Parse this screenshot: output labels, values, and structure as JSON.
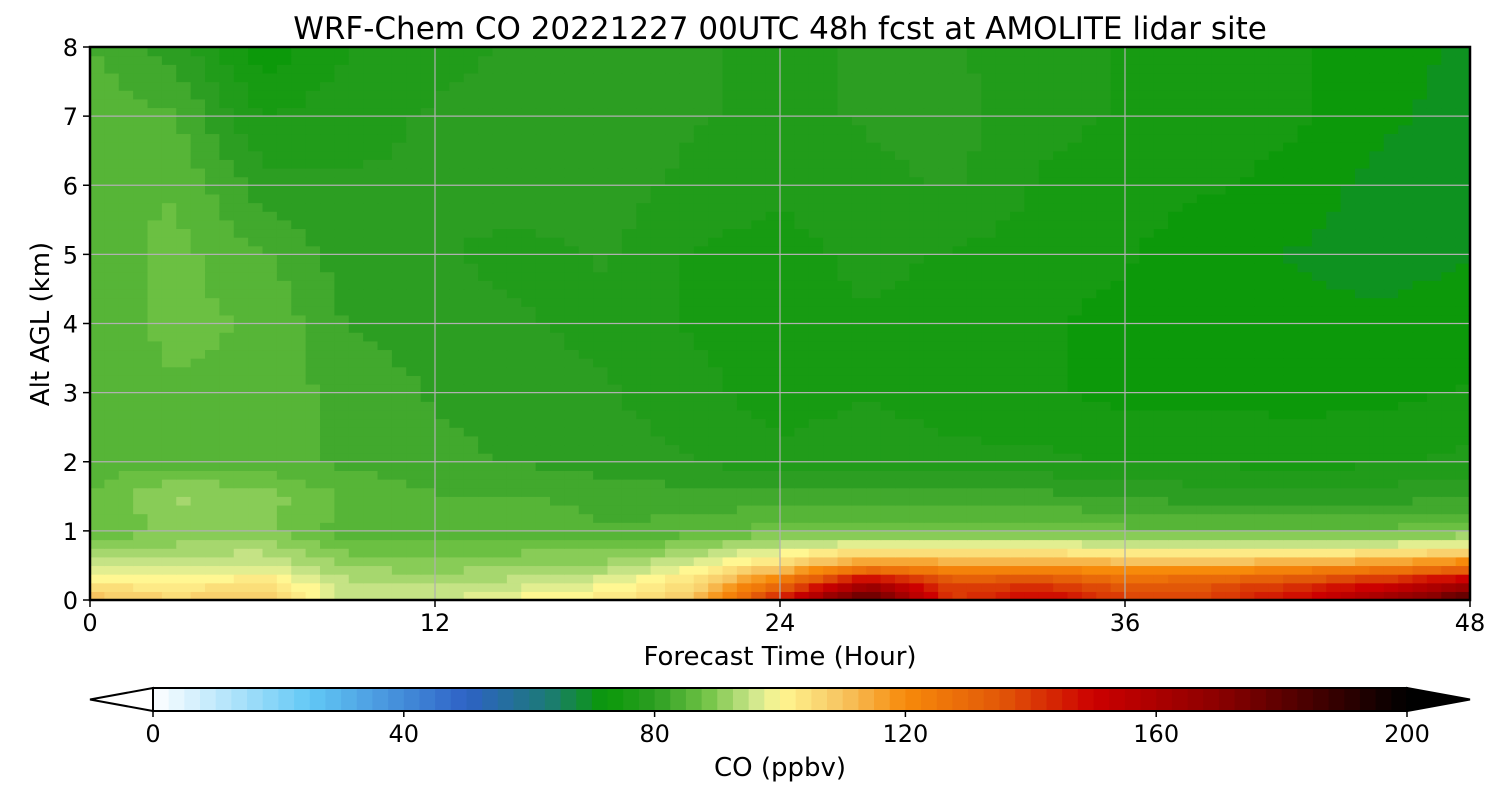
{
  "chart_data": {
    "type": "heatmap",
    "title": "WRF-Chem CO  20221227 00UTC 48h fcst at AMOLITE lidar site",
    "xlabel": "Forecast Time (Hour)",
    "ylabel": "Alt AGL (km)",
    "xlim": [
      0,
      48
    ],
    "ylim": [
      0,
      8
    ],
    "xticks": [
      0,
      12,
      24,
      36,
      48
    ],
    "yticks": [
      0,
      1,
      2,
      3,
      4,
      5,
      6,
      7,
      8
    ],
    "grid": true,
    "x": [
      0,
      3,
      6,
      9,
      12,
      15,
      18,
      21,
      24,
      27,
      30,
      33,
      36,
      39,
      42,
      45,
      48
    ],
    "y": [
      0,
      0.25,
      0.5,
      0.75,
      1,
      1.5,
      2,
      3,
      4,
      5,
      6,
      7,
      8
    ],
    "z": [
      [
        112,
        107,
        110,
        95,
        96,
        100,
        103,
        110,
        148,
        185,
        140,
        152,
        140,
        140,
        150,
        165,
        185
      ],
      [
        103,
        101,
        104,
        94,
        93,
        95,
        98,
        105,
        127,
        160,
        138,
        140,
        132,
        135,
        140,
        147,
        160
      ],
      [
        96,
        96,
        97,
        91,
        90,
        91,
        92,
        98,
        107,
        120,
        118,
        118,
        115,
        115,
        117,
        120,
        125
      ],
      [
        90,
        92,
        93,
        88,
        87,
        88,
        88,
        91,
        96,
        101,
        100,
        100,
        98,
        97,
        98,
        99,
        102
      ],
      [
        87,
        89,
        89,
        85,
        85,
        85,
        84,
        85,
        88,
        88,
        88,
        88,
        87,
        86,
        86,
        87,
        88
      ],
      [
        86,
        92,
        90,
        86,
        84,
        84,
        83,
        82,
        82,
        83,
        83,
        82,
        81,
        80,
        80,
        80,
        81
      ],
      [
        85,
        85,
        85,
        83,
        82,
        81,
        80,
        79,
        77,
        78,
        77,
        77,
        76,
        76,
        75,
        76,
        77
      ],
      [
        84,
        86,
        85,
        83,
        81,
        80,
        79,
        77,
        75,
        76,
        75,
        74,
        73,
        73,
        73,
        73,
        74
      ],
      [
        85,
        87,
        86,
        81,
        80,
        79,
        78,
        76,
        75,
        76,
        75,
        74,
        73,
        72,
        72,
        72,
        73
      ],
      [
        85,
        87,
        84,
        80,
        79,
        78,
        79,
        76,
        75,
        77,
        76,
        75,
        74,
        72,
        71,
        70,
        71
      ],
      [
        86,
        86,
        80,
        79,
        79,
        80,
        80,
        78,
        77,
        78,
        79,
        76,
        75,
        74,
        73,
        70,
        69
      ],
      [
        85,
        84,
        76,
        78,
        79,
        80,
        81,
        79,
        78,
        79,
        80,
        77,
        76,
        75,
        74,
        72,
        70
      ],
      [
        84,
        80,
        72,
        76,
        78,
        79,
        80,
        79,
        78,
        79,
        79,
        77,
        76,
        75,
        74,
        72,
        71
      ]
    ],
    "colorbar": {
      "label": "CO  (ppbv)",
      "min": 0,
      "max": 200,
      "ticks": [
        0,
        40,
        80,
        120,
        160,
        200
      ],
      "extend": "both",
      "location": "bottom",
      "colors": [
        {
          "v": 0,
          "c": "#ffffff"
        },
        {
          "v": 25,
          "c": "#62c8f5"
        },
        {
          "v": 50,
          "c": "#2e62c6"
        },
        {
          "v": 63,
          "c": "#1c7a76"
        },
        {
          "v": 72,
          "c": "#0a9908"
        },
        {
          "v": 80,
          "c": "#2c9e22"
        },
        {
          "v": 88,
          "c": "#6fc244"
        },
        {
          "v": 96,
          "c": "#d1e88e"
        },
        {
          "v": 100,
          "c": "#fff792"
        },
        {
          "v": 110,
          "c": "#f7c460"
        },
        {
          "v": 120,
          "c": "#f78a0a"
        },
        {
          "v": 135,
          "c": "#e25808"
        },
        {
          "v": 150,
          "c": "#cc0000"
        },
        {
          "v": 170,
          "c": "#8b0000"
        },
        {
          "v": 200,
          "c": "#000000"
        }
      ]
    }
  }
}
